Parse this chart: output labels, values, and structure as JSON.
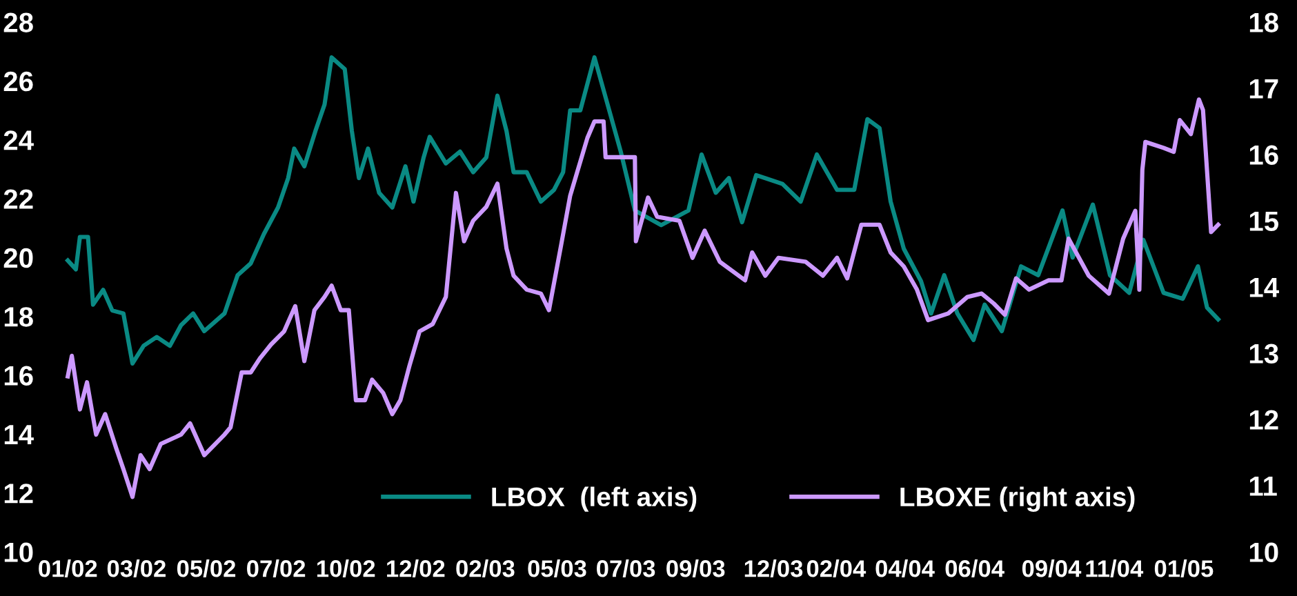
{
  "chart_data": {
    "type": "line",
    "xlim": [
      "2001-12-26",
      "2005-02-20"
    ],
    "xticks": [
      {
        "value": "2002-01-02",
        "label": "01/02"
      },
      {
        "value": "2002-03-11",
        "label": "03/02"
      },
      {
        "value": "2002-05-19",
        "label": "05/02"
      },
      {
        "value": "2002-07-27",
        "label": "07/02"
      },
      {
        "value": "2002-10-04",
        "label": "10/02"
      },
      {
        "value": "2002-12-12",
        "label": "12/02"
      },
      {
        "value": "2003-02-19",
        "label": "02/03"
      },
      {
        "value": "2003-05-01",
        "label": "05/03"
      },
      {
        "value": "2003-07-08",
        "label": "07/03"
      },
      {
        "value": "2003-09-15",
        "label": "09/03"
      },
      {
        "value": "2003-12-01",
        "label": "12/03"
      },
      {
        "value": "2004-02-01",
        "label": "02/04"
      },
      {
        "value": "2004-04-09",
        "label": "04/04"
      },
      {
        "value": "2004-06-17",
        "label": "06/04"
      },
      {
        "value": "2004-09-01",
        "label": "09/04"
      },
      {
        "value": "2004-11-02",
        "label": "11/04"
      },
      {
        "value": "2005-01-10",
        "label": "01/05"
      }
    ],
    "ylim": [
      10,
      28
    ],
    "yticks": [
      10,
      12,
      14,
      16,
      18,
      20,
      22,
      24,
      26,
      28
    ],
    "y2lim": [
      10,
      18
    ],
    "y2ticks": [
      10,
      11,
      12,
      13,
      14,
      15,
      16,
      17,
      18
    ],
    "grid": false,
    "legend": "bottom",
    "marker": "none",
    "line_style": "solid",
    "series": [
      {
        "name": "LBOX  (left axis)",
        "color": "#0a8a84",
        "axis": "y",
        "x": [
          "2002-01-02",
          "2002-01-10",
          "2002-01-14",
          "2002-01-22",
          "2002-01-27",
          "2002-02-06",
          "2002-02-15",
          "2002-02-26",
          "2002-03-07",
          "2002-03-18",
          "2002-03-31",
          "2002-04-13",
          "2002-04-24",
          "2002-05-06",
          "2002-05-17",
          "2002-06-06",
          "2002-06-19",
          "2002-07-02",
          "2002-07-15",
          "2002-07-29",
          "2002-08-08",
          "2002-08-14",
          "2002-08-24",
          "2002-09-04",
          "2002-09-13",
          "2002-09-20",
          "2002-10-03",
          "2002-10-10",
          "2002-10-17",
          "2002-10-26",
          "2002-11-06",
          "2002-11-19",
          "2002-12-02",
          "2002-12-10",
          "2002-12-20",
          "2002-12-26",
          "2003-01-11",
          "2003-01-25",
          "2003-02-07",
          "2003-02-20",
          "2003-03-03",
          "2003-03-12",
          "2003-03-19",
          "2003-04-01",
          "2003-04-15",
          "2003-04-28",
          "2003-05-07",
          "2003-05-14",
          "2003-05-24",
          "2003-06-07",
          "2003-06-20",
          "2003-07-03",
          "2003-07-17",
          "2003-08-12",
          "2003-09-08",
          "2003-09-21",
          "2003-10-05",
          "2003-10-18",
          "2003-10-31",
          "2003-11-14",
          "2003-12-10",
          "2003-12-28",
          "2004-01-13",
          "2004-02-02",
          "2004-02-19",
          "2004-03-03",
          "2004-03-15",
          "2004-03-26",
          "2004-04-08",
          "2004-04-25",
          "2004-05-05",
          "2004-05-18",
          "2004-05-31",
          "2004-06-16",
          "2004-06-27",
          "2004-07-14",
          "2004-08-02",
          "2004-08-19",
          "2004-09-12",
          "2004-09-22",
          "2004-10-12",
          "2004-10-29",
          "2004-11-17",
          "2004-12-01",
          "2004-12-21",
          "2005-01-09",
          "2005-01-24",
          "2005-02-02",
          "2005-02-13"
        ],
        "values": [
          19.9,
          19.6,
          20.7,
          20.7,
          18.4,
          18.9,
          18.2,
          18.1,
          16.4,
          17.0,
          17.3,
          17.0,
          17.7,
          18.1,
          17.5,
          18.1,
          19.4,
          19.8,
          20.8,
          21.7,
          22.7,
          23.7,
          23.1,
          24.3,
          25.2,
          26.8,
          26.4,
          24.3,
          22.7,
          23.7,
          22.2,
          21.7,
          23.1,
          21.9,
          23.4,
          24.1,
          23.2,
          23.6,
          22.9,
          23.4,
          25.5,
          24.3,
          22.9,
          22.9,
          21.9,
          22.3,
          22.9,
          25.0,
          25.0,
          26.8,
          25.2,
          23.6,
          21.6,
          21.1,
          21.6,
          23.5,
          22.2,
          22.7,
          21.2,
          22.8,
          22.5,
          21.9,
          23.5,
          22.3,
          22.3,
          24.7,
          24.4,
          21.9,
          20.3,
          19.2,
          18.1,
          19.4,
          18.1,
          17.2,
          18.4,
          17.5,
          19.7,
          19.4,
          21.6,
          20.0,
          21.8,
          19.4,
          18.8,
          20.6,
          18.8,
          18.6,
          19.7,
          18.3,
          17.9
        ]
      },
      {
        "name": "LBOXE (right axis)",
        "color": "#cc99ff",
        "axis": "y2",
        "x": [
          "2002-01-02",
          "2002-01-06",
          "2002-01-14",
          "2002-01-21",
          "2002-01-30",
          "2002-02-08",
          "2002-02-19",
          "2002-02-26",
          "2002-03-07",
          "2002-03-15",
          "2002-03-24",
          "2002-04-04",
          "2002-04-24",
          "2002-05-03",
          "2002-05-17",
          "2002-06-06",
          "2002-06-12",
          "2002-06-23",
          "2002-07-02",
          "2002-07-11",
          "2002-07-22",
          "2002-08-04",
          "2002-08-15",
          "2002-08-24",
          "2002-09-03",
          "2002-09-13",
          "2002-09-20",
          "2002-09-29",
          "2002-10-07",
          "2002-10-14",
          "2002-10-23",
          "2002-10-30",
          "2002-11-10",
          "2002-11-19",
          "2002-11-27",
          "2002-12-06",
          "2002-12-16",
          "2002-12-29",
          "2003-01-11",
          "2003-01-21",
          "2003-01-29",
          "2003-02-07",
          "2003-02-20",
          "2003-03-03",
          "2003-03-12",
          "2003-03-19",
          "2003-04-01",
          "2003-04-15",
          "2003-04-23",
          "2003-05-05",
          "2003-05-14",
          "2003-05-31",
          "2003-06-07",
          "2003-06-16",
          "2003-06-18",
          "2003-07-17",
          "2003-07-18",
          "2003-07-30",
          "2003-08-08",
          "2003-08-30",
          "2003-09-12",
          "2003-09-24",
          "2003-10-09",
          "2003-11-03",
          "2003-11-10",
          "2003-11-23",
          "2003-12-06",
          "2004-01-02",
          "2004-01-19",
          "2004-02-02",
          "2004-02-12",
          "2004-02-26",
          "2004-03-15",
          "2004-03-26",
          "2004-04-08",
          "2004-04-21",
          "2004-05-02",
          "2004-05-22",
          "2004-06-10",
          "2004-06-24",
          "2004-07-06",
          "2004-07-17",
          "2004-07-28",
          "2004-08-10",
          "2004-08-29",
          "2004-09-11",
          "2004-09-18",
          "2004-10-08",
          "2004-10-28",
          "2004-11-11",
          "2004-11-23",
          "2004-11-27",
          "2004-11-30",
          "2004-12-03",
          "2004-12-21",
          "2004-12-31",
          "2005-01-06",
          "2005-01-17",
          "2005-01-25",
          "2005-01-29",
          "2005-02-06",
          "2005-02-13"
        ],
        "values": [
          12.65,
          12.96,
          12.15,
          12.56,
          11.77,
          12.08,
          11.56,
          11.25,
          10.83,
          11.46,
          11.25,
          11.63,
          11.77,
          11.94,
          11.46,
          11.77,
          11.88,
          12.71,
          12.71,
          12.92,
          13.13,
          13.33,
          13.71,
          12.88,
          13.65,
          13.85,
          14.02,
          13.65,
          13.65,
          12.29,
          12.29,
          12.6,
          12.4,
          12.08,
          12.29,
          12.81,
          13.33,
          13.44,
          13.85,
          15.42,
          14.69,
          15.0,
          15.21,
          15.56,
          14.58,
          14.17,
          13.96,
          13.9,
          13.65,
          14.63,
          15.38,
          16.25,
          16.5,
          16.5,
          15.96,
          15.96,
          14.69,
          15.35,
          15.06,
          15.0,
          14.44,
          14.85,
          14.38,
          14.1,
          14.52,
          14.17,
          14.44,
          14.38,
          14.17,
          14.44,
          14.13,
          14.94,
          14.94,
          14.52,
          14.31,
          13.96,
          13.5,
          13.6,
          13.85,
          13.9,
          13.75,
          13.58,
          14.13,
          13.96,
          14.1,
          14.1,
          14.73,
          14.17,
          13.9,
          14.73,
          15.15,
          13.96,
          15.77,
          16.19,
          16.1,
          16.04,
          16.52,
          16.31,
          16.83,
          16.67,
          14.83,
          14.94
        ]
      }
    ]
  }
}
